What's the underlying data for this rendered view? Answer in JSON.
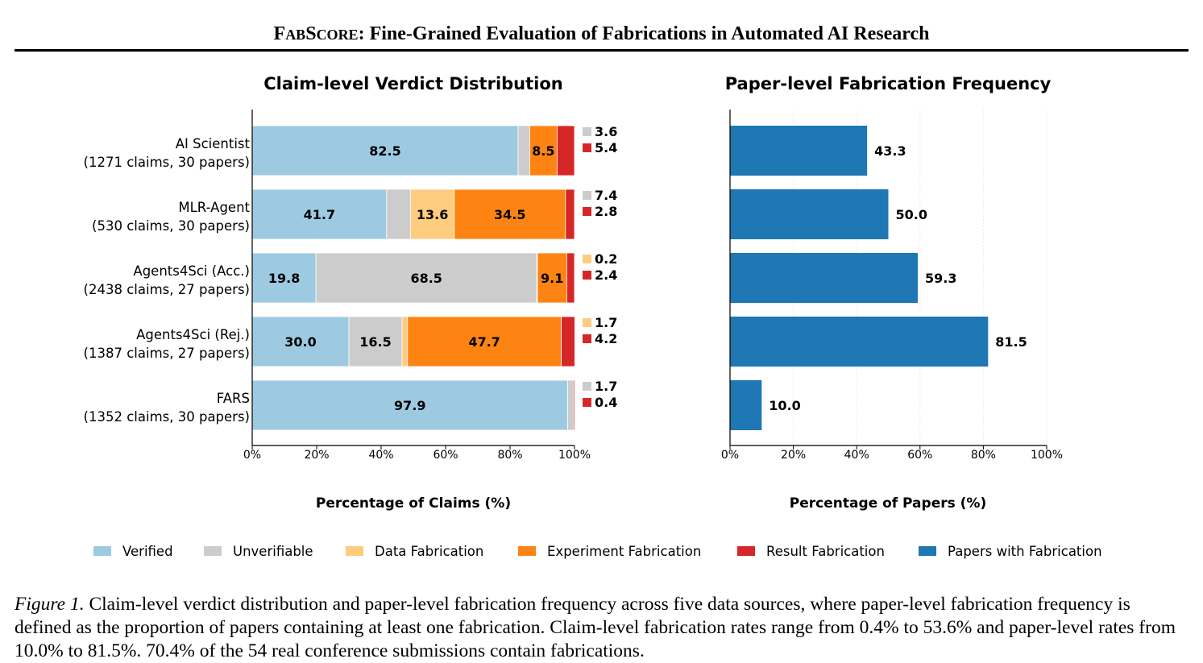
{
  "header": {
    "title_prefix_F": "F",
    "title_prefix_ab": "AB",
    "title_prefix_S": "S",
    "title_prefix_core": "CORE",
    "title_rest": ": Fine-Grained Evaluation of Fabrications in Automated AI Research"
  },
  "legend": [
    {
      "label": "Verified",
      "color": "#9ecae1"
    },
    {
      "label": "Unverifiable",
      "color": "#cccccc"
    },
    {
      "label": "Data Fabrication",
      "color": "#fdcc7f"
    },
    {
      "label": "Experiment Fabrication",
      "color": "#fd8412"
    },
    {
      "label": "Result Fabrication",
      "color": "#d62728"
    },
    {
      "label": "Papers with Fabrication",
      "color": "#1f77b4"
    }
  ],
  "chart_data": [
    {
      "type": "bar",
      "orientation": "horizontal",
      "stacked": true,
      "title": "Claim-level Verdict Distribution",
      "xlabel": "Percentage of Claims (%)",
      "ylabel": "",
      "xlim": [
        0,
        100
      ],
      "xticks": [
        "0%",
        "20%",
        "40%",
        "60%",
        "80%",
        "100%"
      ],
      "categories": [
        [
          "AI Scientist",
          "(1271 claims, 30 papers)"
        ],
        [
          "MLR-Agent",
          "(530 claims, 30 papers)"
        ],
        [
          "Agents4Sci (Acc.)",
          "(2438 claims, 27 papers)"
        ],
        [
          "Agents4Sci (Rej.)",
          "(1387 claims, 27 papers)"
        ],
        [
          "FARS",
          "(1352 claims, 30 papers)"
        ]
      ],
      "series": [
        {
          "name": "Verified",
          "color": "#9ecae1",
          "values": [
            82.5,
            41.7,
            19.8,
            30.0,
            97.9
          ]
        },
        {
          "name": "Unverifiable",
          "color": "#cccccc",
          "values": [
            3.6,
            7.4,
            68.5,
            16.5,
            1.7
          ]
        },
        {
          "name": "Data Fabrication",
          "color": "#fdcc7f",
          "values": [
            0.0,
            13.6,
            0.2,
            1.7,
            0.0
          ]
        },
        {
          "name": "Experiment Fabrication",
          "color": "#fd8412",
          "values": [
            8.5,
            34.5,
            9.1,
            47.7,
            0.0
          ]
        },
        {
          "name": "Result Fabrication",
          "color": "#d62728",
          "values": [
            5.4,
            2.8,
            2.4,
            4.2,
            0.4
          ]
        }
      ],
      "inside_labels": [
        [
          {
            "series": 0,
            "text": "82.5"
          },
          {
            "series": 3,
            "text": "8.5"
          }
        ],
        [
          {
            "series": 0,
            "text": "41.7"
          },
          {
            "series": 2,
            "text": "13.6"
          },
          {
            "series": 3,
            "text": "34.5"
          }
        ],
        [
          {
            "series": 0,
            "text": "19.8"
          },
          {
            "series": 1,
            "text": "68.5"
          },
          {
            "series": 3,
            "text": "9.1"
          }
        ],
        [
          {
            "series": 0,
            "text": "30.0"
          },
          {
            "series": 1,
            "text": "16.5"
          },
          {
            "series": 3,
            "text": "47.7"
          }
        ],
        [
          {
            "series": 0,
            "text": "97.9"
          }
        ]
      ],
      "side_labels": [
        [
          {
            "series": 1,
            "text": "3.6"
          },
          {
            "series": 4,
            "text": "5.4"
          }
        ],
        [
          {
            "series": 1,
            "text": "7.4"
          },
          {
            "series": 4,
            "text": "2.8"
          }
        ],
        [
          {
            "series": 2,
            "text": "0.2"
          },
          {
            "series": 4,
            "text": "2.4"
          }
        ],
        [
          {
            "series": 2,
            "text": "1.7"
          },
          {
            "series": 4,
            "text": "4.2"
          }
        ],
        [
          {
            "series": 1,
            "text": "1.7"
          },
          {
            "series": 4,
            "text": "0.4"
          }
        ]
      ]
    },
    {
      "type": "bar",
      "orientation": "horizontal",
      "title": "Paper-level Fabrication Frequency",
      "xlabel": "Percentage of Papers (%)",
      "ylabel": "",
      "xlim": [
        0,
        100
      ],
      "xticks": [
        "0%",
        "20%",
        "40%",
        "60%",
        "80%",
        "100%"
      ],
      "grid": "vertical",
      "series": [
        {
          "name": "Papers with Fabrication",
          "color": "#1f77b4",
          "values": [
            43.3,
            50.0,
            59.3,
            81.5,
            10.0
          ]
        }
      ],
      "value_labels": [
        "43.3",
        "50.0",
        "59.3",
        "81.5",
        "10.0"
      ]
    }
  ],
  "caption": {
    "figure_label": "Figure 1.",
    "text": " Claim-level verdict distribution and paper-level fabrication frequency across five data sources, where paper-level fabrication frequency is defined as the proportion of papers containing at least one fabrication. Claim-level fabrication rates range from 0.4% to 53.6% and paper-level rates from 10.0% to 81.5%. 70.4% of the 54 real conference submissions contain fabrications."
  }
}
